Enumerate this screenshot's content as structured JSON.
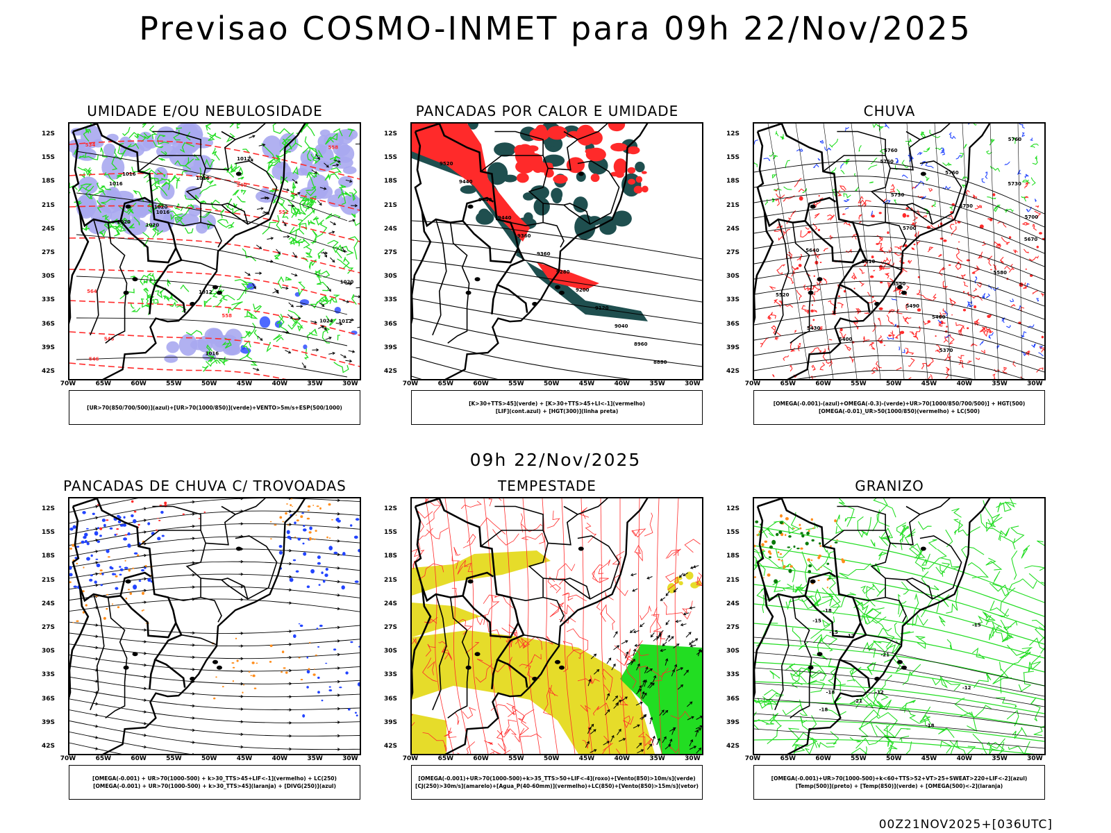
{
  "header": {
    "title": "Previsao COSMO-INMET  para 09h 22/Nov/2025",
    "mid_title": "09h 22/Nov/2025",
    "footer": "00Z21NOV2025+[036UTC]"
  },
  "axes": {
    "lat_labels": [
      "12S",
      "15S",
      "18S",
      "21S",
      "24S",
      "27S",
      "30S",
      "33S",
      "36S",
      "39S",
      "42S"
    ],
    "lon_labels": [
      "70W",
      "65W",
      "60W",
      "55W",
      "50W",
      "45W",
      "40W",
      "35W",
      "30W"
    ]
  },
  "colors": {
    "green": "#22dd22",
    "red": "#ff2a2a",
    "blue": "#2244ff",
    "lavender": "#a8a8f0",
    "teal": "#1f4f4f",
    "yellow": "#e6dc2a",
    "orange": "#ff8c1a",
    "dark_green": "#0a7a0a"
  },
  "panels": [
    {
      "id": "umidade",
      "title": "UMIDADE E/OU NEBULOSIDADE",
      "legend": [
        "[UR>70(850/700/500)](azul)+[UR>70(1000/850)](verde)+VENTO>5m/s+ESP(500/1000)"
      ],
      "contour_labels": [
        "1012",
        "1012",
        "1012",
        "1016",
        "1020",
        "1016",
        "1020",
        "1024",
        "1020",
        "1016",
        "1016",
        "1016",
        "1020",
        "558",
        "564",
        "552",
        "558",
        "546",
        "540",
        "534",
        "546"
      ]
    },
    {
      "id": "pancadas-calor",
      "title": "PANCADAS POR CALOR E UMIDADE",
      "legend": [
        "[K>30+TTS>45](verde) + [K>30+TTS>45+LI<-1](vermelho)",
        "[LIF](cont.azul) + [HGT(300)](linha preta)"
      ],
      "contour_labels": [
        "9520",
        "9440",
        "9440",
        "9440",
        "9360",
        "9360",
        "9280",
        "9200",
        "9120",
        "9040",
        "8960",
        "8880"
      ]
    },
    {
      "id": "chuva",
      "title": "CHUVA",
      "legend": [
        "[OMEGA(-0.001)-(azul)+OMEGA(-0.3)-(verde)+UR>70(1000/850/700/500)] + HGT(500)",
        "[OMEGA(-0.01)_UR>50(1000/850)(vermelho) + LC(500)"
      ],
      "contour_labels": [
        "5760",
        "5760",
        "5760",
        "5760",
        "5730",
        "5730",
        "5730",
        "5700",
        "5700",
        "5670",
        "5640",
        "5610",
        "5580",
        "5550",
        "5520",
        "5490",
        "5460",
        "5430",
        "5400",
        "5370"
      ]
    },
    {
      "id": "trovoadas",
      "title": "PANCADAS DE CHUVA C/ TROVOADAS",
      "legend": [
        "[OMEGA(-0.001) + UR>70(1000-500) + k>30_TTS>45+LIF<-1](vermelho) + LC(250)",
        "[OMEGA(-0.001) + UR>70(1000-500) + k>30_TTS>45](laranja) + [DIVG(250)](azul)"
      ],
      "contour_labels": []
    },
    {
      "id": "tempestade",
      "title": "TEMPESTADE",
      "legend": [
        "[OMEGA(-0.001)+UR>70(1000-500)+k>35_TTS>50+LIF<-4](roxo)+[Vento(850)>10m/s](verde)",
        "[CJ(250)>30m/s](amarelo)+[Agua_P(40-60mm)](vermelho)+LC(850)+[Vento(850)>15m/s](vetor)"
      ],
      "contour_labels": []
    },
    {
      "id": "granizo",
      "title": "GRANIZO",
      "legend": [
        "[OMEGA(-0.001)+UR>70(1000-500)+k<60+TTS>52+VT>25+SWEAT>220+LIF<-2](azul)",
        "[Temp(500)](preto) + [Temp(850)](verde) + [OMEGA(500)<-2](laranja)"
      ],
      "contour_labels": [
        "-12",
        "-12",
        "-12",
        "-15",
        "-15",
        "-18",
        "-18",
        "-18",
        "-21",
        "-21",
        "-15",
        "-18"
      ]
    }
  ]
}
